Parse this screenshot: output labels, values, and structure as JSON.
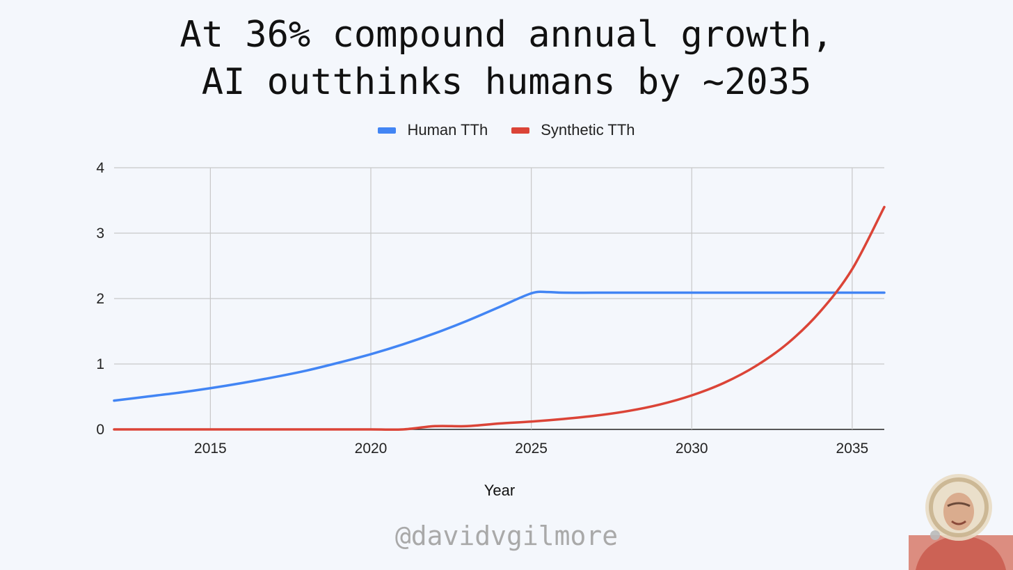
{
  "title": {
    "line1": "At 36% compound annual growth,",
    "line2": "AI outthinks humans by ~2035"
  },
  "handle": "@davidvgilmore",
  "colors": {
    "human": "#4285f4",
    "synthetic": "#db4437",
    "grid": "#c8c8c8",
    "axis": "#222222"
  },
  "chart_data": {
    "type": "line",
    "title": "At 36% compound annual growth, AI outthinks humans by ~2035",
    "xlabel": "Year",
    "ylabel": "",
    "xlim": [
      2012,
      2036
    ],
    "ylim": [
      0,
      4
    ],
    "x_ticks": [
      2015,
      2020,
      2025,
      2030,
      2035
    ],
    "y_ticks": [
      0,
      1,
      2,
      3,
      4
    ],
    "grid": true,
    "legend_position": "top-center",
    "series": [
      {
        "name": "Human TTh",
        "color": "#4285f4",
        "x": [
          2012,
          2013,
          2014,
          2015,
          2016,
          2017,
          2018,
          2019,
          2020,
          2021,
          2022,
          2023,
          2024,
          2025,
          2025.5,
          2026,
          2027,
          2028,
          2029,
          2030,
          2031,
          2032,
          2033,
          2034,
          2035,
          2036
        ],
        "y": [
          0.44,
          0.5,
          0.56,
          0.63,
          0.71,
          0.8,
          0.9,
          1.02,
          1.15,
          1.3,
          1.47,
          1.66,
          1.87,
          2.08,
          2.1,
          2.09,
          2.09,
          2.09,
          2.09,
          2.09,
          2.09,
          2.09,
          2.09,
          2.09,
          2.09,
          2.09
        ]
      },
      {
        "name": "Synthetic TTh",
        "color": "#db4437",
        "x": [
          2012,
          2014,
          2016,
          2018,
          2020,
          2021,
          2022,
          2023,
          2024,
          2025,
          2026,
          2027,
          2028,
          2029,
          2030,
          2031,
          2032,
          2033,
          2034,
          2035,
          2036
        ],
        "y": [
          0,
          0,
          0,
          0,
          0,
          0,
          0.05,
          0.05,
          0.09,
          0.12,
          0.16,
          0.21,
          0.28,
          0.38,
          0.52,
          0.71,
          0.97,
          1.32,
          1.8,
          2.45,
          3.4
        ]
      }
    ]
  }
}
